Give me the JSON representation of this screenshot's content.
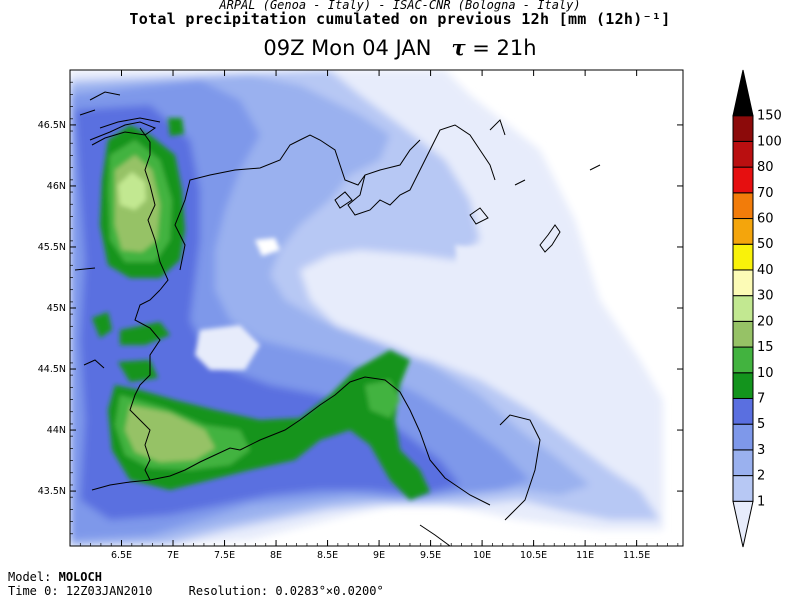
{
  "header": {
    "subtitle": "ARPAL (Genoa - Italy)   -   ISAC-CNR (Bologna - Italy)",
    "title": "Total precipitation cumulated on previous 12h [mm (12h)⁻¹]",
    "valid_time": "09Z Mon 04 JAN",
    "tau_symbol": "τ",
    "tau_value": "= 21h"
  },
  "map": {
    "lon_ticks": [
      "6.5E",
      "7E",
      "7.5E",
      "8E",
      "8.5E",
      "9E",
      "9.5E",
      "10E",
      "10.5E",
      "11E",
      "11.5E"
    ],
    "lat_ticks": [
      "46.5N",
      "46N",
      "45.5N",
      "45N",
      "44.5N",
      "44N",
      "43.5N"
    ],
    "lon_range": [
      6.0,
      11.95
    ],
    "lat_range": [
      43.05,
      46.95
    ]
  },
  "colorbar": {
    "labels": [
      "1",
      "2",
      "3",
      "5",
      "7",
      "10",
      "15",
      "20",
      "30",
      "40",
      "50",
      "60",
      "70",
      "80",
      "100",
      "150"
    ],
    "colors": [
      "#e7ecfb",
      "#b7c8f4",
      "#9ab1ef",
      "#7e98ea",
      "#5a6fe0",
      "#13941d",
      "#42b33f",
      "#96c266",
      "#c2e891",
      "#fcfbb6",
      "#f9f20a",
      "#f4a50c",
      "#f27c0a",
      "#e60f10",
      "#ba0f10",
      "#8c0a0a",
      "#000000"
    ]
  },
  "footer": {
    "model_label": "Model:",
    "model_name": "MOLOCH",
    "time_label": "Time 0:",
    "time_value": "12Z03JAN2010",
    "resolution_label": "Resolution:",
    "resolution_value": "0.0283°×0.0200°"
  }
}
